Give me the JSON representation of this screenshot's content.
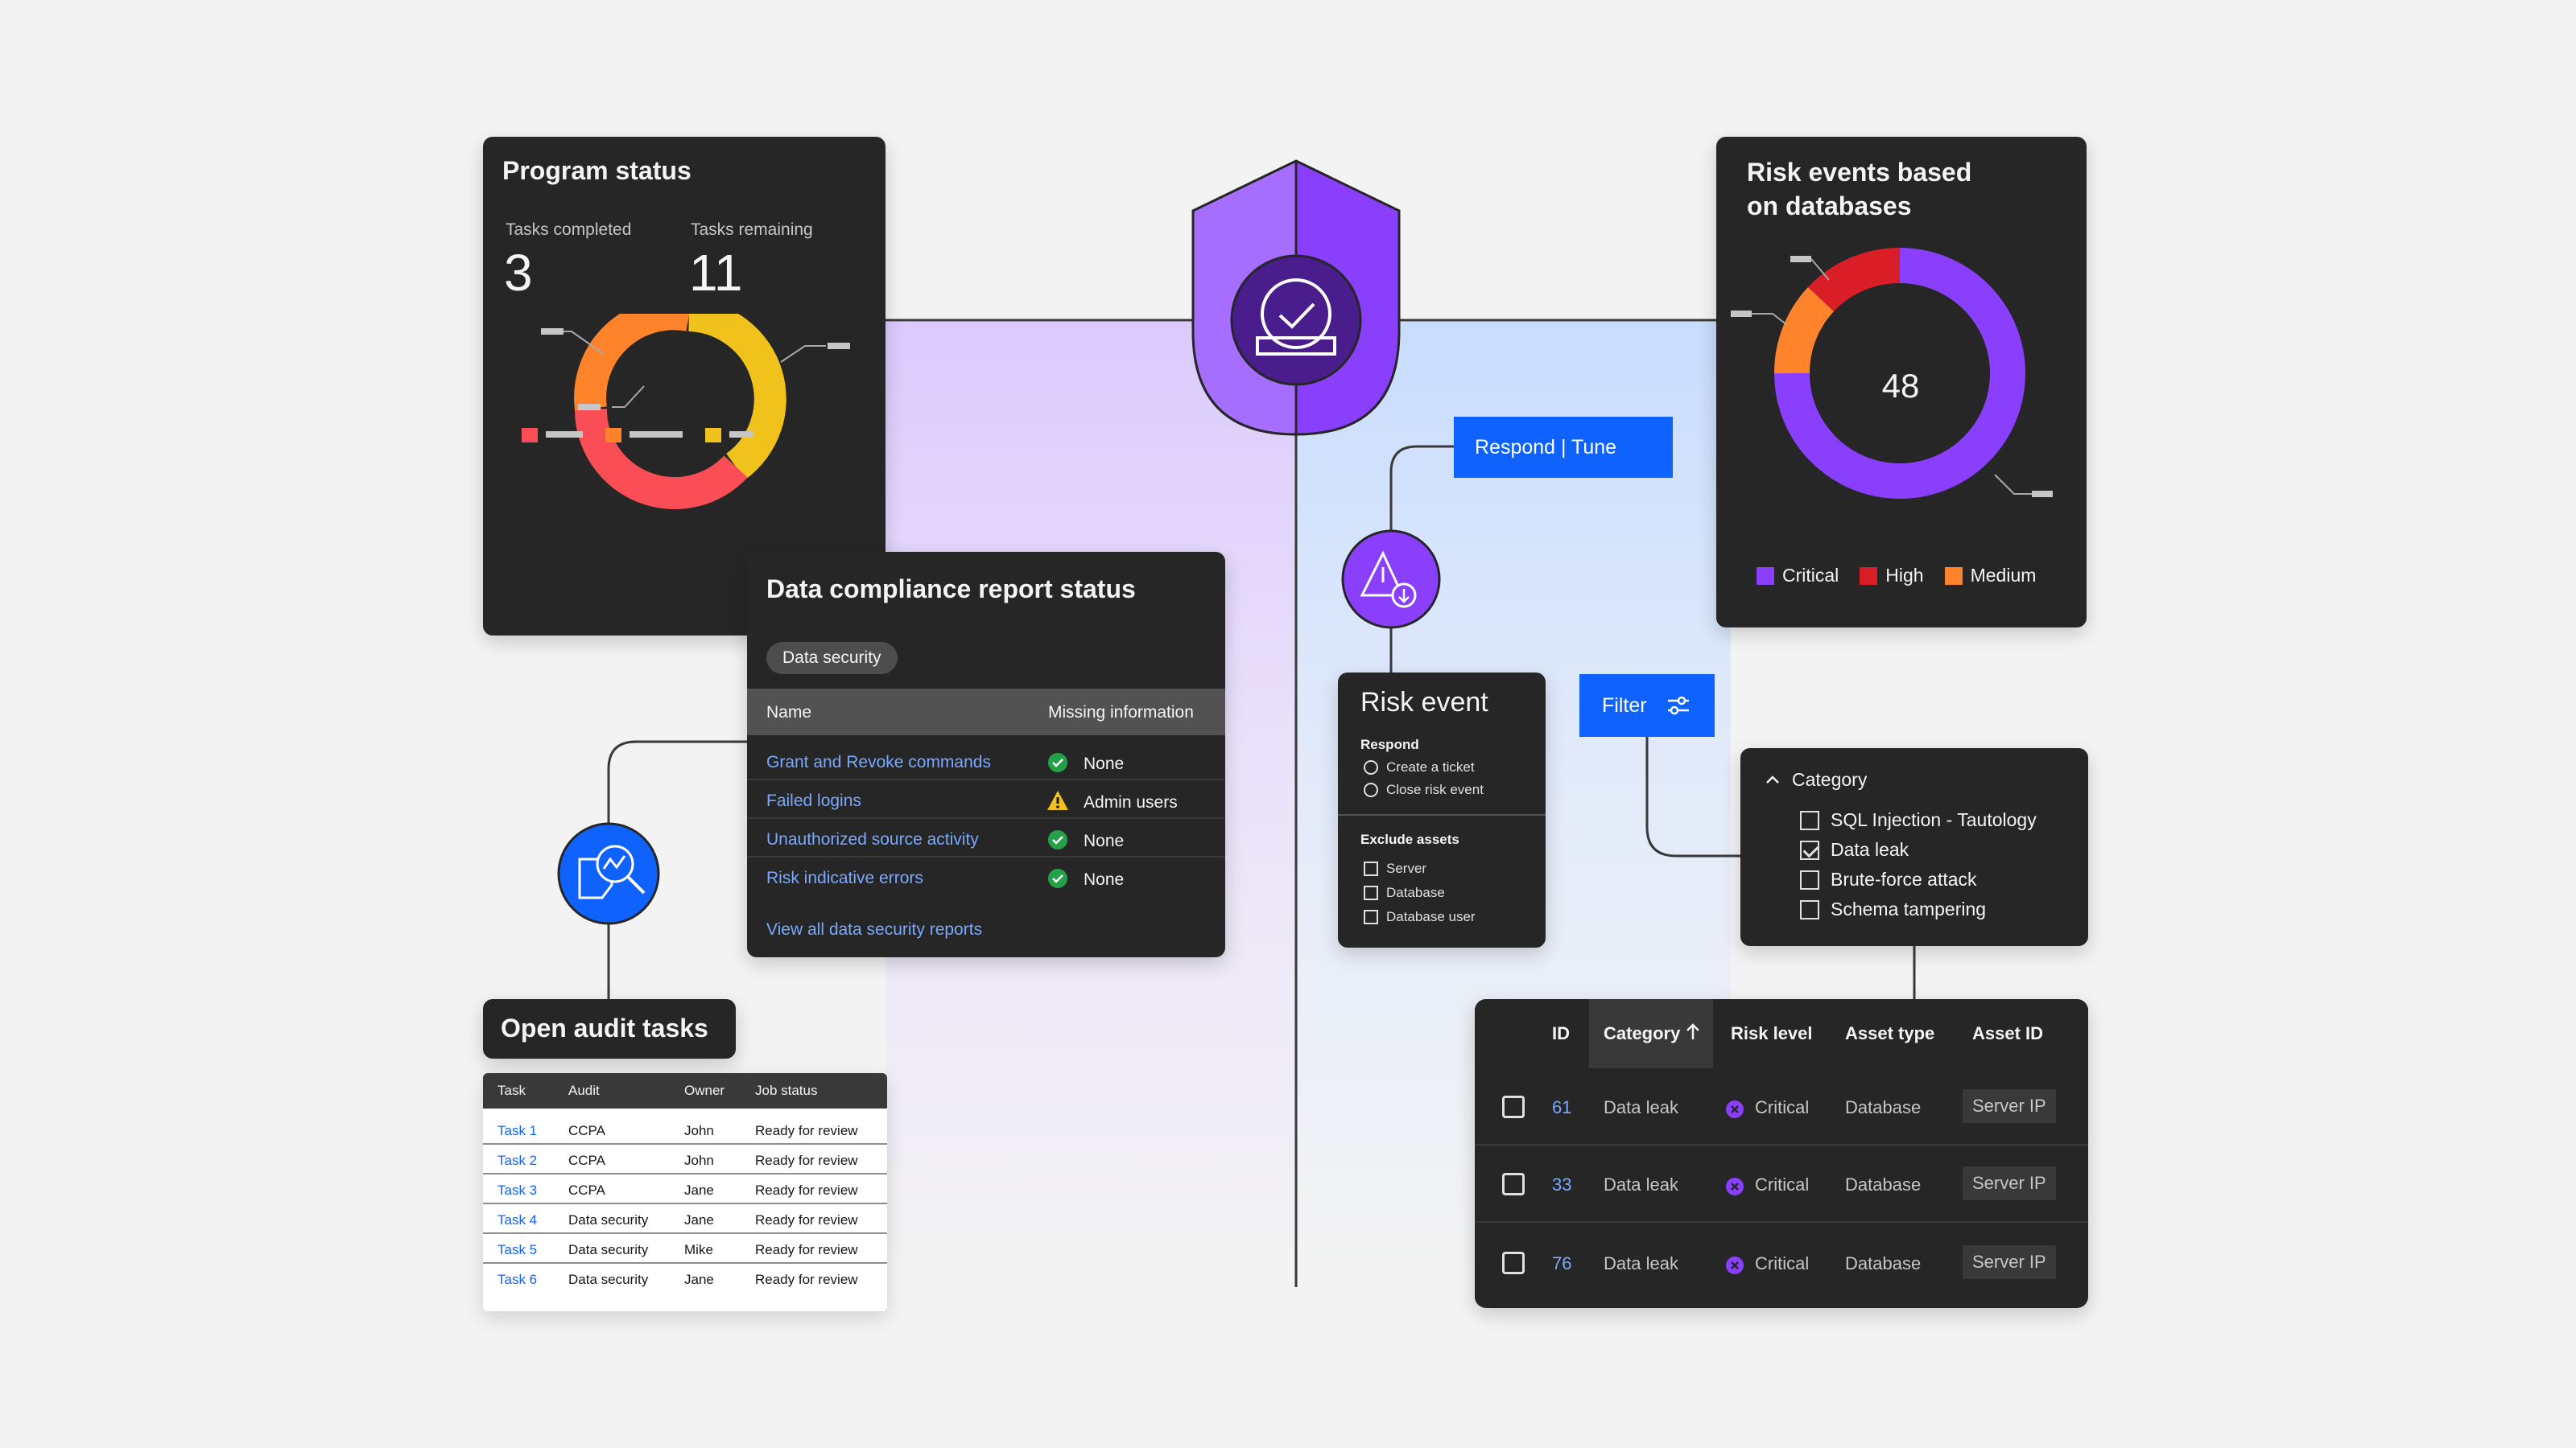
{
  "colors": {
    "background": "#f3f3f3",
    "card_dark": "#262626",
    "accent_blue": "#0f62fe",
    "purple": "#8a3ffc",
    "red": "#da1e28",
    "orange": "#ff832b",
    "yellow": "#f1c21b",
    "green": "#24a148"
  },
  "program_status": {
    "title": "Program status",
    "tasks_completed_label": "Tasks completed",
    "tasks_completed_value": "3",
    "tasks_remaining_label": "Tasks remaining",
    "tasks_remaining_value": "11"
  },
  "compliance": {
    "title": "Data compliance report status",
    "tag": "Data security",
    "col_name": "Name",
    "col_missing": "Missing information",
    "rows": [
      {
        "name": "Grant and Revoke commands",
        "status": "None",
        "icon": "check-circle-icon"
      },
      {
        "name": "Failed logins",
        "status": "Admin users",
        "icon": "warning-icon"
      },
      {
        "name": "Unauthorized source activity",
        "status": "None",
        "icon": "check-circle-icon"
      },
      {
        "name": "Risk indicative errors",
        "status": "None",
        "icon": "check-circle-icon"
      }
    ],
    "view_all": "View all data security reports"
  },
  "risk_events": {
    "title_line1": "Risk events based",
    "title_line2": "on databases",
    "total": "48",
    "legend": [
      {
        "label": "Critical",
        "color": "#8a3ffc"
      },
      {
        "label": "High",
        "color": "#da1e28"
      },
      {
        "label": "Medium",
        "color": "#ff832b"
      }
    ]
  },
  "respond_button": "Respond | Tune",
  "filter_button": "Filter",
  "risk_event": {
    "title": "Risk event",
    "respond_label": "Respond",
    "respond_options": [
      "Create a ticket",
      "Close risk event"
    ],
    "exclude_label": "Exclude assets",
    "exclude_options": [
      "Server",
      "Database",
      "Database user"
    ]
  },
  "category": {
    "label": "Category",
    "options": [
      {
        "label": "SQL Injection - Tautology",
        "checked": false
      },
      {
        "label": "Data leak",
        "checked": true
      },
      {
        "label": "Brute-force attack",
        "checked": false
      },
      {
        "label": "Schema tampering",
        "checked": false
      }
    ]
  },
  "data_table": {
    "headers": [
      "ID",
      "Category",
      "Risk level",
      "Asset type",
      "Asset ID"
    ],
    "rows": [
      {
        "id": "61",
        "category": "Data leak",
        "risk": "Critical",
        "asset_type": "Database",
        "asset_id": "Server IP"
      },
      {
        "id": "33",
        "category": "Data leak",
        "risk": "Critical",
        "asset_type": "Database",
        "asset_id": "Server IP"
      },
      {
        "id": "76",
        "category": "Data leak",
        "risk": "Critical",
        "asset_type": "Database",
        "asset_id": "Server IP"
      }
    ]
  },
  "audit": {
    "title": "Open audit tasks",
    "headers": [
      "Task",
      "Audit",
      "Owner",
      "Job status"
    ],
    "rows": [
      {
        "task": "Task 1",
        "audit": "CCPA",
        "owner": "John",
        "status": "Ready for review"
      },
      {
        "task": "Task 2",
        "audit": "CCPA",
        "owner": "John",
        "status": "Ready for review"
      },
      {
        "task": "Task 3",
        "audit": "CCPA",
        "owner": "Jane",
        "status": "Ready for review"
      },
      {
        "task": "Task 4",
        "audit": "Data security",
        "owner": "Jane",
        "status": "Ready for review"
      },
      {
        "task": "Task 5",
        "audit": "Data security",
        "owner": "Mike",
        "status": "Ready for review"
      },
      {
        "task": "Task 6",
        "audit": "Data security",
        "owner": "Jane",
        "status": "Ready for review"
      }
    ]
  }
}
